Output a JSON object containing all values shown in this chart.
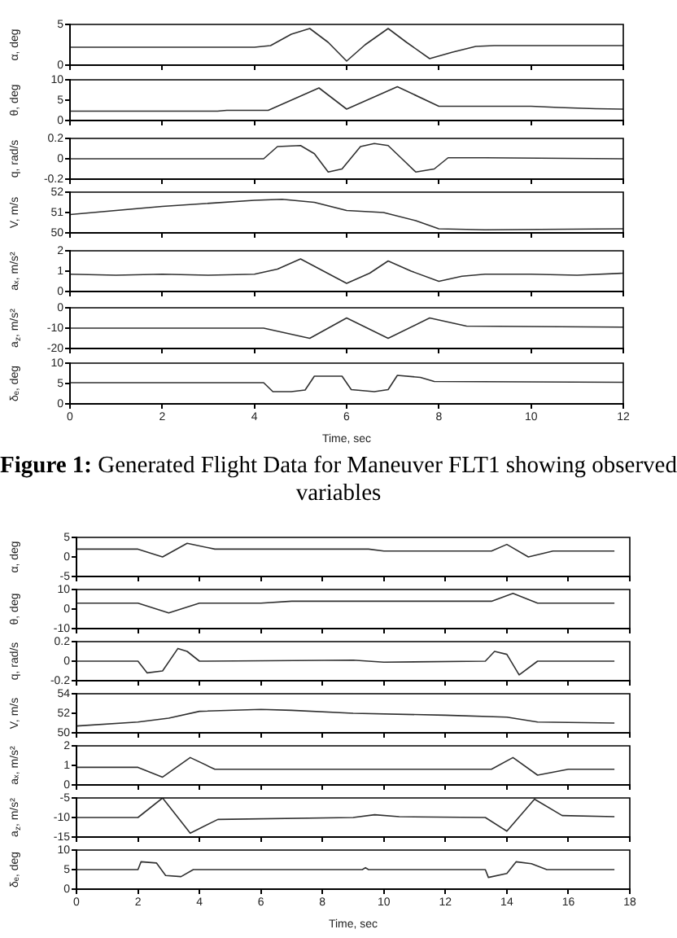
{
  "chart_data": [
    {
      "type": "line",
      "ylabel": "α, deg",
      "color": "#303030",
      "tick_labels": "y",
      "xlim": [
        0,
        12
      ],
      "xticks": [
        0,
        2,
        4,
        6,
        8,
        10,
        12
      ],
      "ylim": [
        0,
        5
      ],
      "yticks": [
        0,
        5
      ],
      "x": [
        0,
        4.0,
        4.35,
        4.8,
        5.2,
        5.6,
        6.0,
        6.4,
        6.9,
        7.3,
        7.8,
        8.3,
        8.8,
        9.2,
        12
      ],
      "values": [
        2.2,
        2.2,
        2.4,
        3.8,
        4.5,
        2.8,
        0.5,
        2.5,
        4.5,
        2.8,
        0.8,
        1.6,
        2.3,
        2.4,
        2.4
      ]
    },
    {
      "type": "line",
      "ylabel": "θ, deg",
      "color": "#303030",
      "tick_labels": "y",
      "xlim": [
        0,
        12
      ],
      "xticks": [
        0,
        2,
        4,
        6,
        8,
        10,
        12
      ],
      "ylim": [
        0,
        10
      ],
      "yticks": [
        0,
        5,
        10
      ],
      "x": [
        0,
        3.2,
        3.4,
        4.3,
        5.4,
        6.0,
        7.1,
        8.0,
        10,
        10.6,
        11.4,
        12
      ],
      "values": [
        2.3,
        2.3,
        2.5,
        2.5,
        8,
        2.8,
        8.3,
        3.5,
        3.5,
        3.2,
        2.9,
        2.8
      ]
    },
    {
      "type": "line",
      "ylabel": "q, rad/s",
      "color": "#303030",
      "tick_labels": "y",
      "xlim": [
        0,
        12
      ],
      "xticks": [
        0,
        2,
        4,
        6,
        8,
        10,
        12
      ],
      "ylim": [
        -0.2,
        0.2
      ],
      "yticks": [
        -0.2,
        0,
        0.2
      ],
      "x": [
        0,
        4.2,
        4.5,
        5.0,
        5.3,
        5.6,
        5.9,
        6.3,
        6.6,
        6.9,
        7.2,
        7.5,
        7.9,
        8.2,
        9.0,
        12
      ],
      "values": [
        0,
        0,
        0.12,
        0.13,
        0.05,
        -0.13,
        -0.1,
        0.12,
        0.15,
        0.13,
        0,
        -0.13,
        -0.1,
        0.01,
        0.01,
        0
      ]
    },
    {
      "type": "line",
      "ylabel": "V, m/s",
      "color": "#303030",
      "tick_labels": "y",
      "xlim": [
        0,
        12
      ],
      "xticks": [
        0,
        2,
        4,
        6,
        8,
        10,
        12
      ],
      "ylim": [
        50,
        52
      ],
      "yticks": [
        50,
        51,
        52
      ],
      "x": [
        0,
        2,
        4,
        4.6,
        5.3,
        6.0,
        6.8,
        7.5,
        8.0,
        9,
        12
      ],
      "values": [
        50.9,
        51.3,
        51.6,
        51.65,
        51.5,
        51.1,
        51.0,
        50.6,
        50.2,
        50.15,
        50.2
      ]
    },
    {
      "type": "line",
      "ylabel": "aₓ, m/s²",
      "color": "#303030",
      "tick_labels": "y",
      "xlim": [
        0,
        12
      ],
      "xticks": [
        0,
        2,
        4,
        6,
        8,
        10,
        12
      ],
      "ylim": [
        0,
        2
      ],
      "yticks": [
        0,
        1,
        2
      ],
      "x": [
        0,
        1,
        2,
        3,
        4.0,
        4.5,
        5.0,
        5.5,
        6.0,
        6.5,
        6.9,
        7.4,
        8.0,
        8.5,
        9,
        10,
        11,
        12
      ],
      "values": [
        0.85,
        0.8,
        0.85,
        0.8,
        0.85,
        1.1,
        1.6,
        1.0,
        0.4,
        0.9,
        1.5,
        1.0,
        0.5,
        0.75,
        0.85,
        0.85,
        0.8,
        0.9
      ]
    },
    {
      "type": "line",
      "ylabel": "a$_{z}$, m/s²",
      "color": "#303030",
      "tick_labels": "y",
      "xlim": [
        0,
        12
      ],
      "xticks": [
        0,
        2,
        4,
        6,
        8,
        10,
        12
      ],
      "ylim": [
        -20,
        0
      ],
      "yticks": [
        -20,
        -10,
        0
      ],
      "x": [
        0,
        4.2,
        5.2,
        6.0,
        6.9,
        7.8,
        8.6,
        12
      ],
      "values": [
        -10,
        -10,
        -15,
        -5,
        -15,
        -5,
        -9,
        -9.5
      ]
    },
    {
      "type": "line",
      "ylabel": "δₑ, deg",
      "xlabel": "Time, sec",
      "color": "#303030",
      "xlim": [
        0,
        12
      ],
      "xticks": [
        0,
        2,
        4,
        6,
        8,
        10,
        12
      ],
      "ylim": [
        0,
        10
      ],
      "yticks": [
        0,
        5,
        10
      ],
      "x": [
        0,
        4.2,
        4.4,
        4.8,
        5.1,
        5.3,
        5.9,
        6.1,
        6.6,
        6.9,
        7.1,
        7.6,
        7.9,
        12
      ],
      "values": [
        5.2,
        5.2,
        3,
        3,
        3.4,
        6.8,
        6.8,
        3.5,
        3,
        3.5,
        7,
        6.5,
        5.5,
        5.3
      ],
      "annotations": [
        "Figure 1: Generated Flight Data for Maneuver FLT1 showing observed variables"
      ]
    },
    {
      "type": "line",
      "ylabel": "α, deg",
      "color": "#303030",
      "tick_labels": "y",
      "xlim": [
        0,
        18
      ],
      "xticks": [
        0,
        2,
        4,
        6,
        8,
        10,
        12,
        14,
        16,
        18
      ],
      "ylim": [
        -5,
        5
      ],
      "yticks": [
        -5,
        0,
        5
      ],
      "x": [
        0,
        2.0,
        2.8,
        3.6,
        4.5,
        9.5,
        10,
        13.5,
        14,
        14.7,
        15.5,
        17.5
      ],
      "values": [
        2,
        2,
        0,
        3.5,
        2,
        2,
        1.5,
        1.5,
        3.2,
        0,
        1.5,
        1.5
      ]
    },
    {
      "type": "line",
      "ylabel": "θ, deg",
      "color": "#303030",
      "tick_labels": "y",
      "xlim": [
        0,
        18
      ],
      "xticks": [
        0,
        2,
        4,
        6,
        8,
        10,
        12,
        14,
        16,
        18
      ],
      "ylim": [
        -10,
        10
      ],
      "yticks": [
        -10,
        0,
        10
      ],
      "x": [
        0,
        2.0,
        3.0,
        4.0,
        6,
        7,
        9,
        10,
        13.5,
        14.2,
        15,
        17,
        17.5
      ],
      "values": [
        3,
        3,
        -2,
        3,
        3,
        4,
        4,
        4,
        4,
        8,
        3,
        3,
        3
      ]
    },
    {
      "type": "line",
      "ylabel": "q, rad/s",
      "color": "#303030",
      "tick_labels": "y",
      "xlim": [
        0,
        18
      ],
      "xticks": [
        0,
        2,
        4,
        6,
        8,
        10,
        12,
        14,
        16,
        18
      ],
      "ylim": [
        -0.2,
        0.2
      ],
      "yticks": [
        -0.2,
        0,
        0.2
      ],
      "x": [
        0,
        2,
        2.3,
        2.8,
        3.3,
        3.6,
        4.0,
        9,
        10,
        13.3,
        13.6,
        14.0,
        14.4,
        15,
        17.5
      ],
      "values": [
        0,
        0,
        -0.12,
        -0.1,
        0.13,
        0.1,
        0,
        0.01,
        -0.01,
        0,
        0.1,
        0.07,
        -0.14,
        0,
        0
      ]
    },
    {
      "type": "line",
      "ylabel": "V, m/s",
      "color": "#303030",
      "tick_labels": "y",
      "xlim": [
        0,
        18
      ],
      "xticks": [
        0,
        2,
        4,
        6,
        8,
        10,
        12,
        14,
        16,
        18
      ],
      "ylim": [
        50,
        54
      ],
      "yticks": [
        50,
        52,
        54
      ],
      "x": [
        0,
        2,
        3,
        4,
        6,
        7,
        9,
        12,
        14,
        15,
        17.5
      ],
      "values": [
        50.7,
        51.1,
        51.5,
        52.2,
        52.4,
        52.3,
        52,
        51.8,
        51.6,
        51.1,
        51
      ]
    },
    {
      "type": "line",
      "ylabel": "aₓ, m/s²",
      "color": "#303030",
      "tick_labels": "y",
      "xlim": [
        0,
        18
      ],
      "xticks": [
        0,
        2,
        4,
        6,
        8,
        10,
        12,
        14,
        16,
        18
      ],
      "ylim": [
        0,
        2
      ],
      "yticks": [
        0,
        1,
        2
      ],
      "x": [
        0,
        1,
        2,
        2.8,
        3.7,
        4.5,
        6,
        8,
        10,
        12,
        13.5,
        14.2,
        15,
        16,
        17.5
      ],
      "values": [
        0.9,
        0.9,
        0.9,
        0.4,
        1.4,
        0.8,
        0.8,
        0.8,
        0.8,
        0.8,
        0.8,
        1.4,
        0.5,
        0.8,
        0.8
      ]
    },
    {
      "type": "line",
      "ylabel": "a$_{z}$, m/s²",
      "color": "#303030",
      "tick_labels": "y",
      "xlim": [
        0,
        18
      ],
      "xticks": [
        0,
        2,
        4,
        6,
        8,
        10,
        12,
        14,
        16,
        18
      ],
      "ylim": [
        -15,
        -5
      ],
      "yticks": [
        -15,
        -10,
        -5
      ],
      "x": [
        0,
        2,
        2.8,
        3.7,
        4.6,
        9,
        9.7,
        10.5,
        13.3,
        14,
        14.9,
        15.8,
        17.5
      ],
      "values": [
        -10,
        -10,
        -5,
        -14,
        -10.5,
        -10,
        -9.3,
        -9.8,
        -10,
        -13.5,
        -5.3,
        -9.5,
        -9.8
      ]
    },
    {
      "type": "line",
      "ylabel": "δₑ, deg",
      "xlabel": "Time, sec",
      "color": "#303030",
      "xlim": [
        0,
        18
      ],
      "xticks": [
        0,
        2,
        4,
        6,
        8,
        10,
        12,
        14,
        16,
        18
      ],
      "ylim": [
        0,
        10
      ],
      "yticks": [
        0,
        5,
        10
      ],
      "x": [
        0,
        2.0,
        2.1,
        2.6,
        2.9,
        3.4,
        3.8,
        9.3,
        9.4,
        9.5,
        13.3,
        13.4,
        14.0,
        14.3,
        14.8,
        15.3,
        17.5
      ],
      "values": [
        5,
        5,
        7,
        6.7,
        3.5,
        3.2,
        5,
        5,
        5.5,
        5,
        5,
        3,
        4,
        7,
        6.5,
        5,
        5
      ]
    }
  ]
}
